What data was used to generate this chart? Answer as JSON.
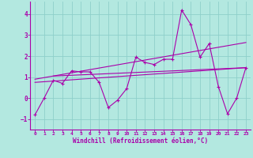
{
  "xlabel": "Windchill (Refroidissement éolien,°C)",
  "xlim": [
    -0.5,
    23.5
  ],
  "ylim": [
    -1.5,
    4.6
  ],
  "yticks": [
    -1,
    0,
    1,
    2,
    3,
    4
  ],
  "xticks": [
    0,
    1,
    2,
    3,
    4,
    5,
    6,
    7,
    8,
    9,
    10,
    11,
    12,
    13,
    14,
    15,
    16,
    17,
    18,
    19,
    20,
    21,
    22,
    23
  ],
  "background_color": "#b3e8e0",
  "grid_color": "#8ecfca",
  "line_color": "#aa00aa",
  "series1_x": [
    0,
    1,
    2,
    3,
    4,
    5,
    6,
    7,
    8,
    9,
    10,
    11,
    12,
    13,
    14,
    15,
    16,
    17,
    18,
    19,
    20,
    21,
    22,
    23
  ],
  "series1_y": [
    -0.8,
    0.0,
    0.85,
    0.7,
    1.3,
    1.25,
    1.25,
    0.75,
    -0.45,
    -0.1,
    0.45,
    1.95,
    1.7,
    1.6,
    1.85,
    1.85,
    4.2,
    3.5,
    1.95,
    2.6,
    0.55,
    -0.75,
    0.0,
    1.45
  ],
  "trend1_x": [
    0,
    23
  ],
  "trend1_y": [
    0.75,
    1.45
  ],
  "trend2_x": [
    0,
    23
  ],
  "trend2_y": [
    0.9,
    2.65
  ],
  "trend3_x": [
    2,
    23
  ],
  "trend3_y": [
    1.05,
    1.45
  ]
}
